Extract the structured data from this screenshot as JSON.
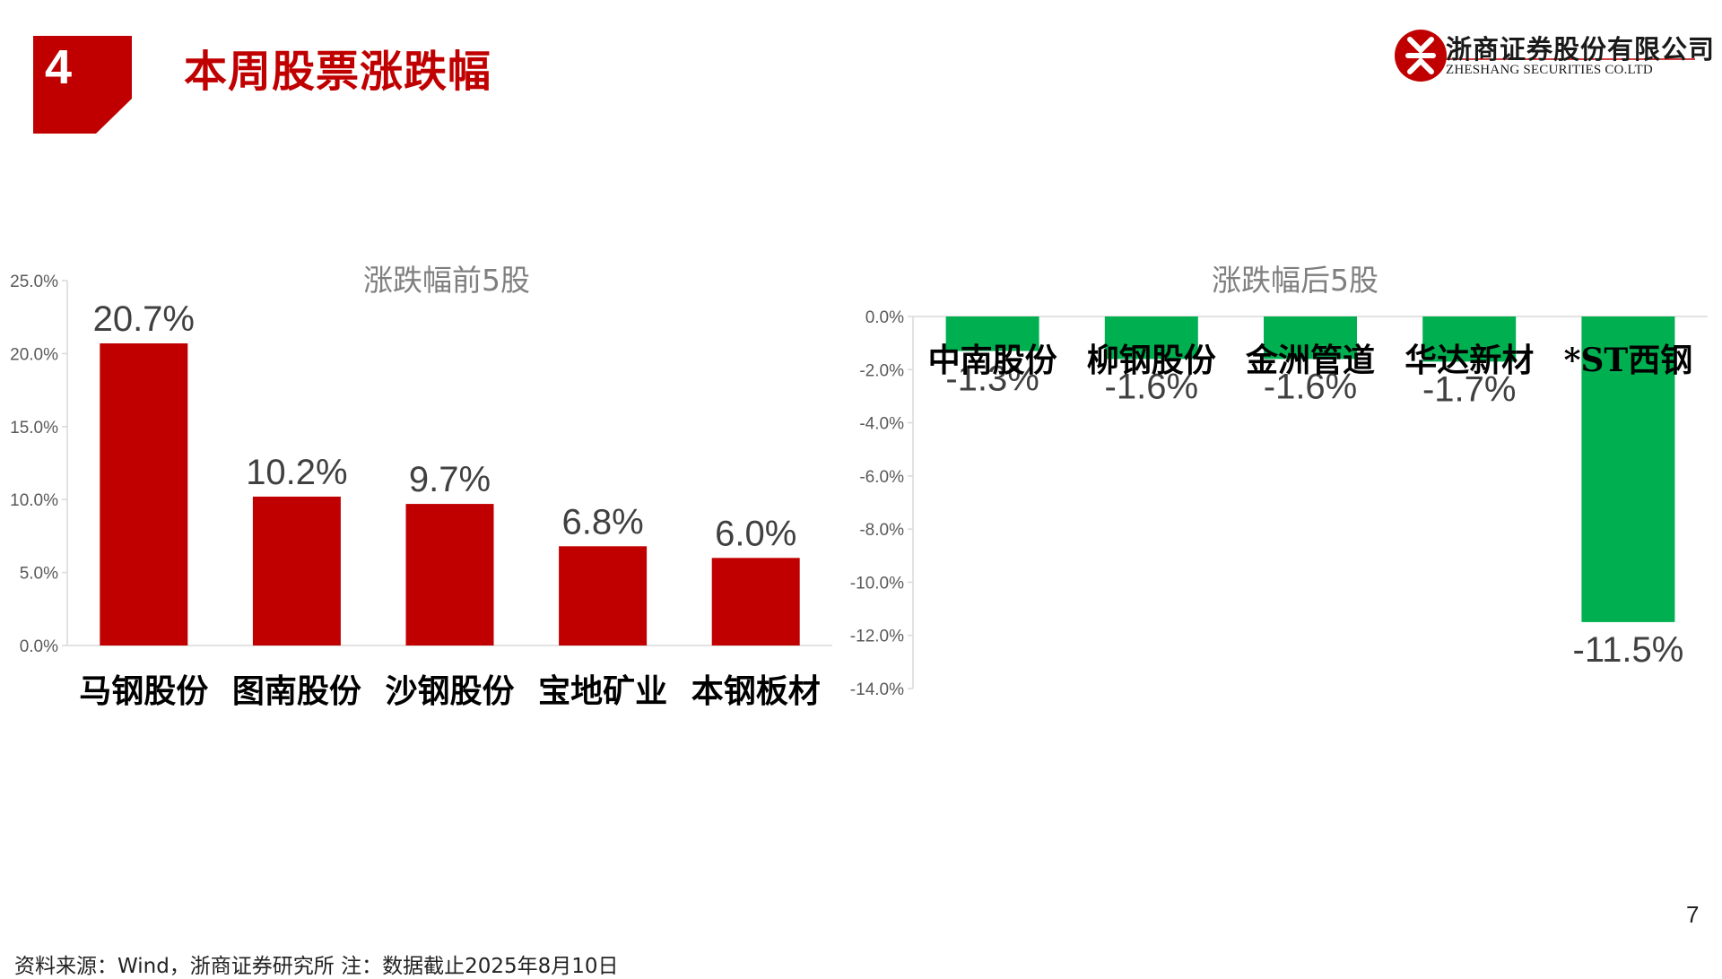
{
  "header": {
    "section_number": "4",
    "title": "本周股票涨跌幅",
    "accent_color": "#c00000"
  },
  "logo": {
    "name": "浙商证券股份有限公司",
    "subtitle": "ZHESHANG SECURITIES CO.LTD",
    "icon": "zheshang-logo-icon"
  },
  "page_number": "7",
  "footnote": "资料来源：Wind，浙商证券研究所    注：数据截止2025年8月10日",
  "chart_data": [
    {
      "type": "bar",
      "title": "涨跌幅前5股",
      "categories": [
        "马钢股份",
        "图南股份",
        "沙钢股份",
        "宝地矿业",
        "本钢板材"
      ],
      "values": [
        20.7,
        10.2,
        9.7,
        6.8,
        6.0
      ],
      "data_labels": [
        "20.7%",
        "10.2%",
        "9.7%",
        "6.8%",
        "6.0%"
      ],
      "yticks": [
        "0.0%",
        "5.0%",
        "10.0%",
        "15.0%",
        "20.0%",
        "25.0%"
      ],
      "ylim": [
        0,
        25
      ],
      "color": "#c00000",
      "grid": false,
      "legend": "none"
    },
    {
      "type": "bar",
      "title": "涨跌幅后5股",
      "categories": [
        "中南股份",
        "柳钢股份",
        "金洲管道",
        "华达新材",
        "*ST西钢"
      ],
      "values": [
        -1.3,
        -1.6,
        -1.6,
        -1.7,
        -11.5
      ],
      "data_labels": [
        "-1.3%",
        "-1.6%",
        "-1.6%",
        "-1.7%",
        "-11.5%"
      ],
      "yticks": [
        "0.0%",
        "-2.0%",
        "-4.0%",
        "-6.0%",
        "-8.0%",
        "-10.0%",
        "-12.0%",
        "-14.0%"
      ],
      "ylim": [
        -14,
        0
      ],
      "color": "#00b050",
      "grid": false,
      "legend": "none"
    }
  ]
}
